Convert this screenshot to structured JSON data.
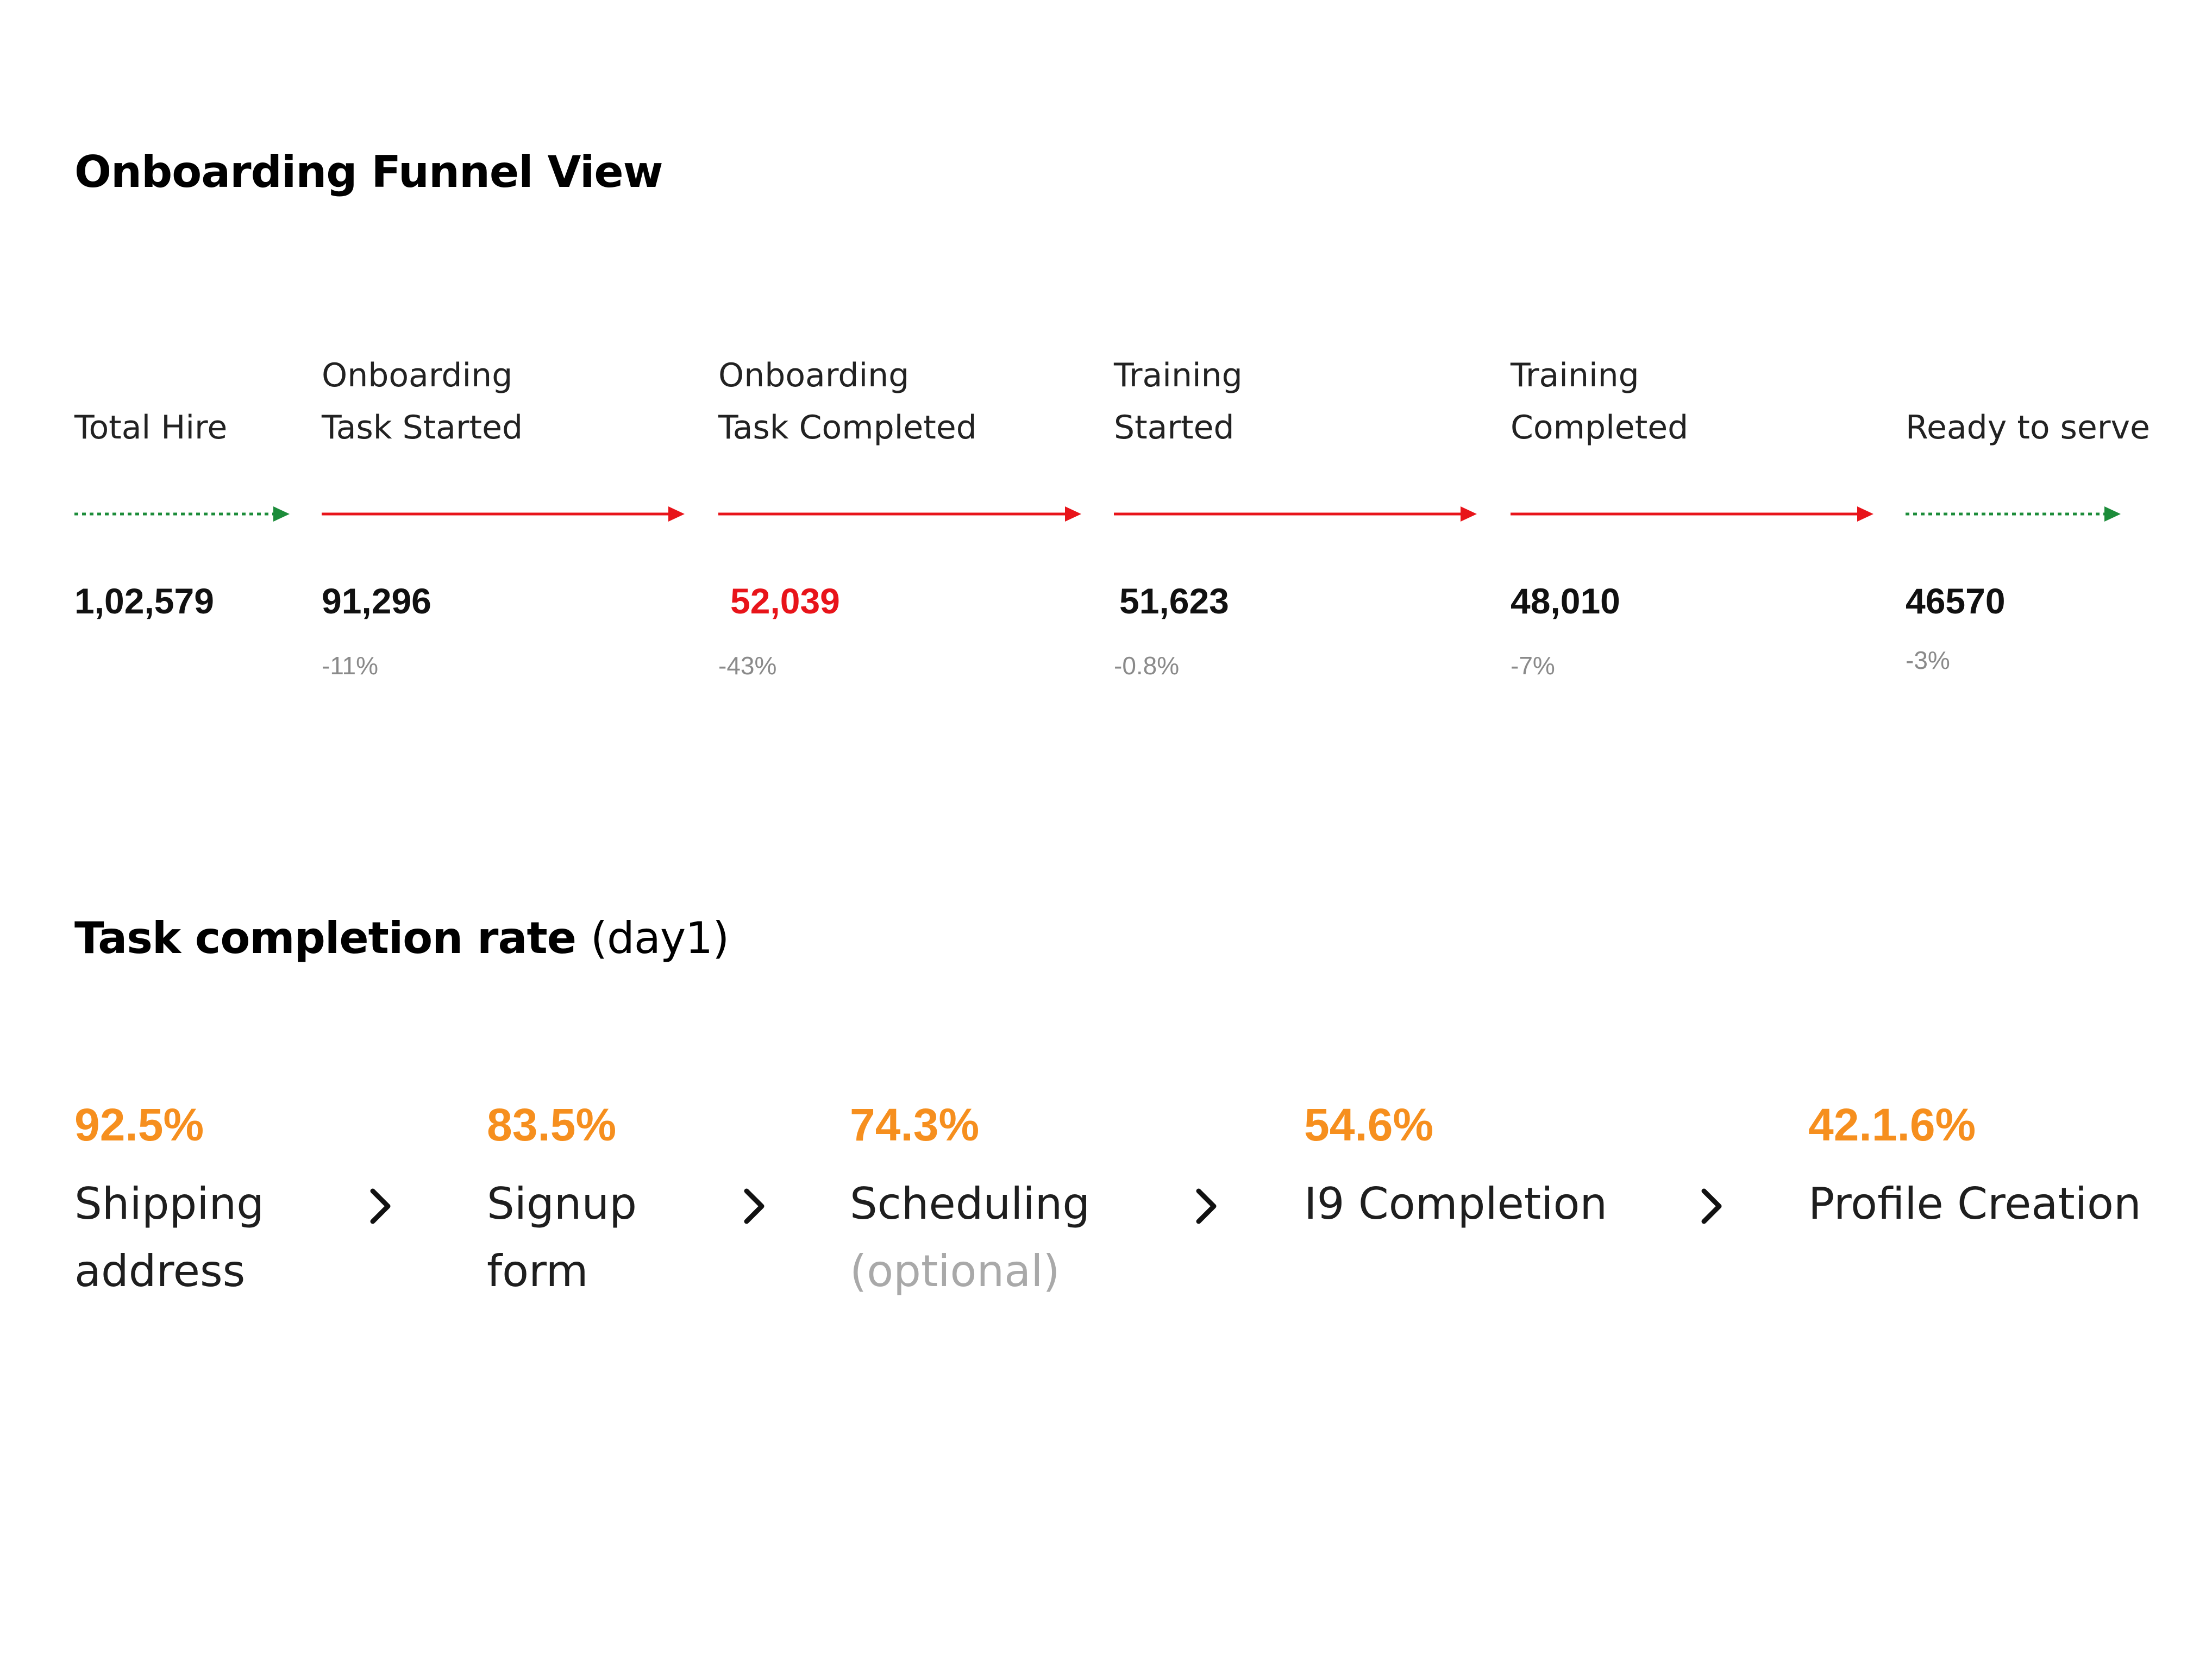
{
  "funnel": {
    "title": "Onboarding Funnel View",
    "stages": [
      {
        "label_lines": [
          "Total Hire"
        ],
        "value": "1,02,579",
        "change": "",
        "arrow": "dotted-green",
        "value_color": "#111111"
      },
      {
        "label_lines": [
          "Onboarding",
          "Task Started"
        ],
        "value": "91,296",
        "change": "-11%",
        "arrow": "solid-red",
        "value_color": "#111111"
      },
      {
        "label_lines": [
          "Onboarding",
          "Task Completed"
        ],
        "value": "52,039",
        "change": "-43%",
        "arrow": "solid-red",
        "value_color": "#e8141a"
      },
      {
        "label_lines": [
          "Training",
          "Started"
        ],
        "value": "51,623",
        "change": "-0.8%",
        "arrow": "solid-red",
        "value_color": "#111111"
      },
      {
        "label_lines": [
          "Training",
          "Completed"
        ],
        "value": "48,010",
        "change": "-7%",
        "arrow": "solid-red",
        "value_color": "#111111"
      },
      {
        "label_lines": [
          "Ready to serve"
        ],
        "value": "46570",
        "change": "-3%",
        "arrow": "dotted-green",
        "value_color": "#111111"
      }
    ],
    "colors": {
      "green_arrow": "#1c8c3a",
      "red_arrow": "#e8141a"
    }
  },
  "tasks": {
    "title": "Task completion rate",
    "title_suffix": "(day1)",
    "items": [
      {
        "pct": "92.5%",
        "label_lines": [
          "Shipping",
          "address"
        ],
        "optional": ""
      },
      {
        "pct": "83.5%",
        "label_lines": [
          "Signup",
          "form"
        ],
        "optional": ""
      },
      {
        "pct": "74.3%",
        "label_lines": [
          "Scheduling"
        ],
        "optional": "(optional)"
      },
      {
        "pct": "54.6%",
        "label_lines": [
          "I9 Completion"
        ],
        "optional": ""
      },
      {
        "pct": "42.1.6%",
        "label_lines": [
          "Profile Creation"
        ],
        "optional": ""
      }
    ],
    "separator_icon": "chevron-right-icon",
    "accent_color": "#f68f1e"
  }
}
